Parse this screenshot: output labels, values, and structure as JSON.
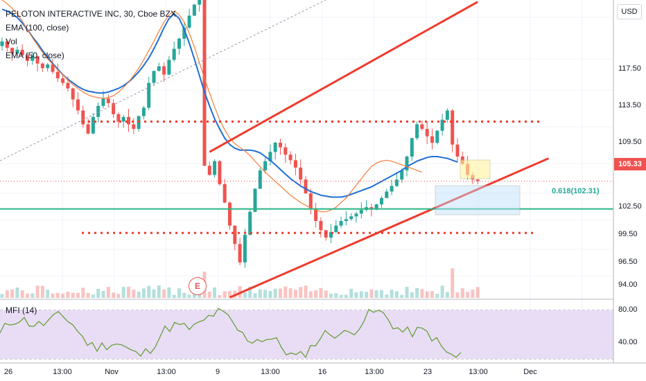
{
  "legend": {
    "symbol": "PELOTON INTERACTIVE INC, 30, Cboe BZX",
    "ema1": "EMA (100, close)",
    "vol": "Vol",
    "ema2": "EMA (50, close)"
  },
  "mfi_title": "MFI (14)",
  "currency_button": "USD",
  "last_price": "105.33",
  "fib_label": "0.618(102.31)",
  "earnings_marker": "E",
  "colors": {
    "up": "#26a69a",
    "down": "#ef5350",
    "ema100": "#1e6fd6",
    "ema50": "#f57c36",
    "trend": "#ef3b2c",
    "fib": "#26b584",
    "mfi_line": "#689f38",
    "mfi_band": "#e9ddf6"
  },
  "chart_data": {
    "type": "candlestick",
    "price_axis": {
      "ticks": [
        "117.50",
        "113.50",
        "109.50",
        "105.33",
        "102.50",
        "99.50",
        "96.50",
        "94.00"
      ],
      "ylim": [
        92.5,
        125
      ]
    },
    "mfi_axis": {
      "ticks": [
        "80.00",
        "40.00"
      ],
      "ylim": [
        15,
        90
      ]
    },
    "time_axis": {
      "ticks": [
        "26",
        "13:00",
        "Nov",
        "13:00",
        "9",
        "13:00",
        "16",
        "13:00",
        "23",
        "13:00",
        "Dec"
      ]
    },
    "closes": [
      120.5,
      119.8,
      119.2,
      119.6,
      119.0,
      118.4,
      118.9,
      118.1,
      117.6,
      118.0,
      117.2,
      116.5,
      116.0,
      115.4,
      114.2,
      113.0,
      111.5,
      110.5,
      112.3,
      113.5,
      114.3,
      113.8,
      112.6,
      111.8,
      112.3,
      111.5,
      111.0,
      112.4,
      113.3,
      116.0,
      117.3,
      117.8,
      116.9,
      118.5,
      119.7,
      120.8,
      122.0,
      123.3,
      124.5,
      125.5,
      107.0,
      106.0,
      107.5,
      105.0,
      103.0,
      100.5,
      98.5,
      96.5,
      99.5,
      102.0,
      104.5,
      106.5,
      107.5,
      108.5,
      109.5,
      109.0,
      108.2,
      107.6,
      106.8,
      105.5,
      104.0,
      102.3,
      101.0,
      100.0,
      99.2,
      99.8,
      100.5,
      101.0,
      101.2,
      101.5,
      101.8,
      102.2,
      102.5,
      102.3,
      102.8,
      103.5,
      104.2,
      104.8,
      105.5,
      106.5,
      108.0,
      110.0,
      111.5,
      111.0,
      110.2,
      109.5,
      110.8,
      112.0,
      113.0,
      109.3,
      108.0,
      107.2,
      106.0,
      105.5,
      105.33
    ],
    "ema100": [
      124.0,
      123.8,
      123.5,
      123.1,
      122.5,
      121.8,
      121.0,
      120.3,
      119.5,
      118.8,
      118.1,
      117.5,
      116.9,
      116.4,
      116.0,
      115.6,
      115.3,
      115.1,
      115.0,
      114.9,
      114.9,
      115.0,
      115.2,
      115.4,
      115.7,
      116.1,
      116.6,
      117.2,
      117.9,
      118.7,
      119.7,
      120.8,
      122.0,
      123.0,
      123.5,
      123.0,
      121.8,
      120.3,
      118.6,
      116.8,
      115.0,
      113.5,
      112.1,
      111.0,
      110.0,
      109.3,
      108.9,
      108.7,
      108.7,
      108.7,
      108.6,
      108.4,
      108.0,
      107.6,
      107.1,
      106.6,
      106.1,
      105.6,
      105.2,
      104.8,
      104.5,
      104.2,
      104.0,
      103.8,
      103.7,
      103.6,
      103.6,
      103.6,
      103.7,
      103.9,
      104.1,
      104.3,
      104.5,
      104.7,
      105.0,
      105.3,
      105.6,
      105.9,
      106.2,
      106.5,
      106.9,
      107.2,
      107.5,
      107.7,
      107.9,
      108.0,
      108.0,
      107.9,
      107.8,
      107.6,
      107.4
    ],
    "ema50": [
      125.0,
      124.6,
      124.1,
      123.5,
      122.7,
      121.8,
      120.9,
      120.1,
      119.3,
      118.6,
      118.0,
      117.4,
      116.9,
      116.3,
      115.8,
      115.4,
      115.0,
      114.7,
      114.5,
      114.4,
      114.3,
      114.4,
      114.6,
      115.0,
      115.5,
      116.1,
      116.8,
      117.6,
      118.5,
      119.5,
      120.5,
      121.6,
      122.6,
      123.4,
      123.8,
      123.4,
      122.6,
      121.4,
      119.9,
      118.2,
      116.5,
      114.9,
      113.4,
      112.0,
      110.9,
      110.0,
      109.4,
      109.0,
      108.6,
      108.1,
      107.5,
      106.9,
      106.3,
      105.8,
      105.3,
      104.8,
      104.3,
      103.8,
      103.4,
      103.0,
      102.7,
      102.4,
      102.2,
      102.0,
      102.0,
      102.2,
      102.5,
      103.0,
      103.5,
      104.2,
      104.9,
      105.6,
      106.3,
      106.9,
      107.3,
      107.5,
      107.6,
      107.5,
      107.3,
      107.1,
      106.9,
      106.7,
      106.5,
      106.3
    ],
    "trendlines": [
      {
        "name": "channel-upper",
        "p1": [
          41,
          108.5
        ],
        "p2": [
          94,
          124.8
        ]
      },
      {
        "name": "channel-lower",
        "p1": [
          45,
          92.7
        ],
        "p2": [
          108,
          107.8
        ]
      }
    ],
    "levels": [
      {
        "name": "resistance",
        "y": 111.8,
        "style": "dotted"
      },
      {
        "name": "support",
        "y": 99.7,
        "style": "dotted"
      },
      {
        "name": "fib-0.618",
        "y": 102.31,
        "style": "solid"
      }
    ]
  }
}
